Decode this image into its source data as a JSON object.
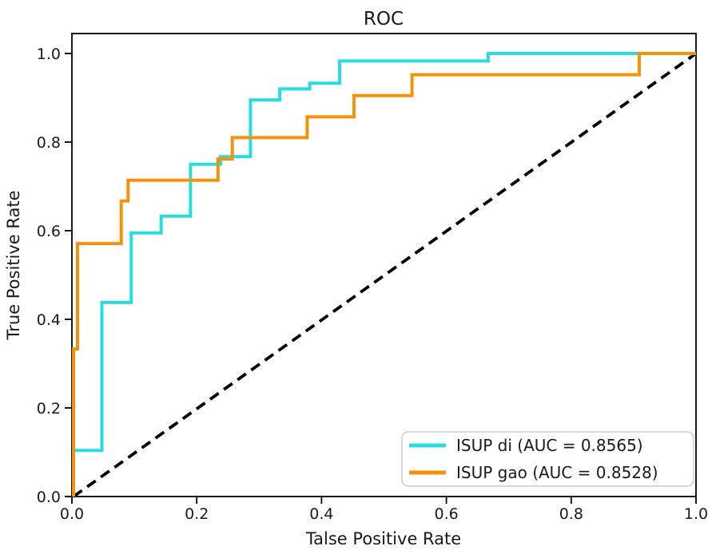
{
  "chart_data": {
    "type": "line",
    "title": "ROC",
    "xlabel": "Talse Positive Rate",
    "ylabel": "True Positive Rate",
    "xlim": [
      0.0,
      1.0
    ],
    "ylim": [
      0.0,
      1.045
    ],
    "grid": false,
    "legend_position": "lower right",
    "x_tick_labels": [
      "0.0",
      "0.2",
      "0.4",
      "0.6",
      "0.8",
      "1.0"
    ],
    "y_tick_labels": [
      "0.0",
      "0.2",
      "0.4",
      "0.6",
      "0.8",
      "1.0"
    ],
    "x_ticks": [
      0.0,
      0.2,
      0.4,
      0.6,
      0.8,
      1.0
    ],
    "y_ticks": [
      0.0,
      0.2,
      0.4,
      0.6,
      0.8,
      1.0
    ],
    "series": [
      {
        "name": "ISUP di (AUC = 0.8565)",
        "auc": "0.8565",
        "color": "#2bdcdf",
        "style": "step",
        "points": [
          [
            0.0,
            0.0
          ],
          [
            0.0,
            0.104
          ],
          [
            0.048,
            0.104
          ],
          [
            0.048,
            0.438
          ],
          [
            0.095,
            0.438
          ],
          [
            0.095,
            0.595
          ],
          [
            0.143,
            0.595
          ],
          [
            0.143,
            0.633
          ],
          [
            0.19,
            0.633
          ],
          [
            0.19,
            0.75
          ],
          [
            0.238,
            0.75
          ],
          [
            0.238,
            0.767
          ],
          [
            0.286,
            0.767
          ],
          [
            0.286,
            0.895
          ],
          [
            0.333,
            0.895
          ],
          [
            0.333,
            0.92
          ],
          [
            0.381,
            0.92
          ],
          [
            0.381,
            0.933
          ],
          [
            0.429,
            0.933
          ],
          [
            0.429,
            0.983
          ],
          [
            0.667,
            0.983
          ],
          [
            0.667,
            1.0
          ],
          [
            1.0,
            1.0
          ]
        ]
      },
      {
        "name": "ISUP gao (AUC = 0.8528)",
        "auc": "0.8528",
        "color": "#f5920a",
        "style": "step",
        "points": [
          [
            0.0,
            0.0
          ],
          [
            0.0,
            0.333
          ],
          [
            0.009,
            0.333
          ],
          [
            0.009,
            0.571
          ],
          [
            0.079,
            0.571
          ],
          [
            0.079,
            0.667
          ],
          [
            0.09,
            0.667
          ],
          [
            0.09,
            0.714
          ],
          [
            0.234,
            0.714
          ],
          [
            0.234,
            0.762
          ],
          [
            0.257,
            0.762
          ],
          [
            0.257,
            0.81
          ],
          [
            0.377,
            0.81
          ],
          [
            0.377,
            0.857
          ],
          [
            0.452,
            0.857
          ],
          [
            0.452,
            0.905
          ],
          [
            0.545,
            0.905
          ],
          [
            0.545,
            0.952
          ],
          [
            0.909,
            0.952
          ],
          [
            0.909,
            1.0
          ],
          [
            1.0,
            1.0
          ]
        ]
      }
    ],
    "reference_line": {
      "name": "chance diagonal",
      "points": [
        [
          0.0,
          0.0
        ],
        [
          1.0,
          1.0
        ]
      ],
      "color": "#000000",
      "dashed": true
    }
  },
  "colors": {
    "spine": "#000000",
    "text": "#1a1a1a",
    "legend_border": "#cccccc",
    "background": "#ffffff"
  }
}
